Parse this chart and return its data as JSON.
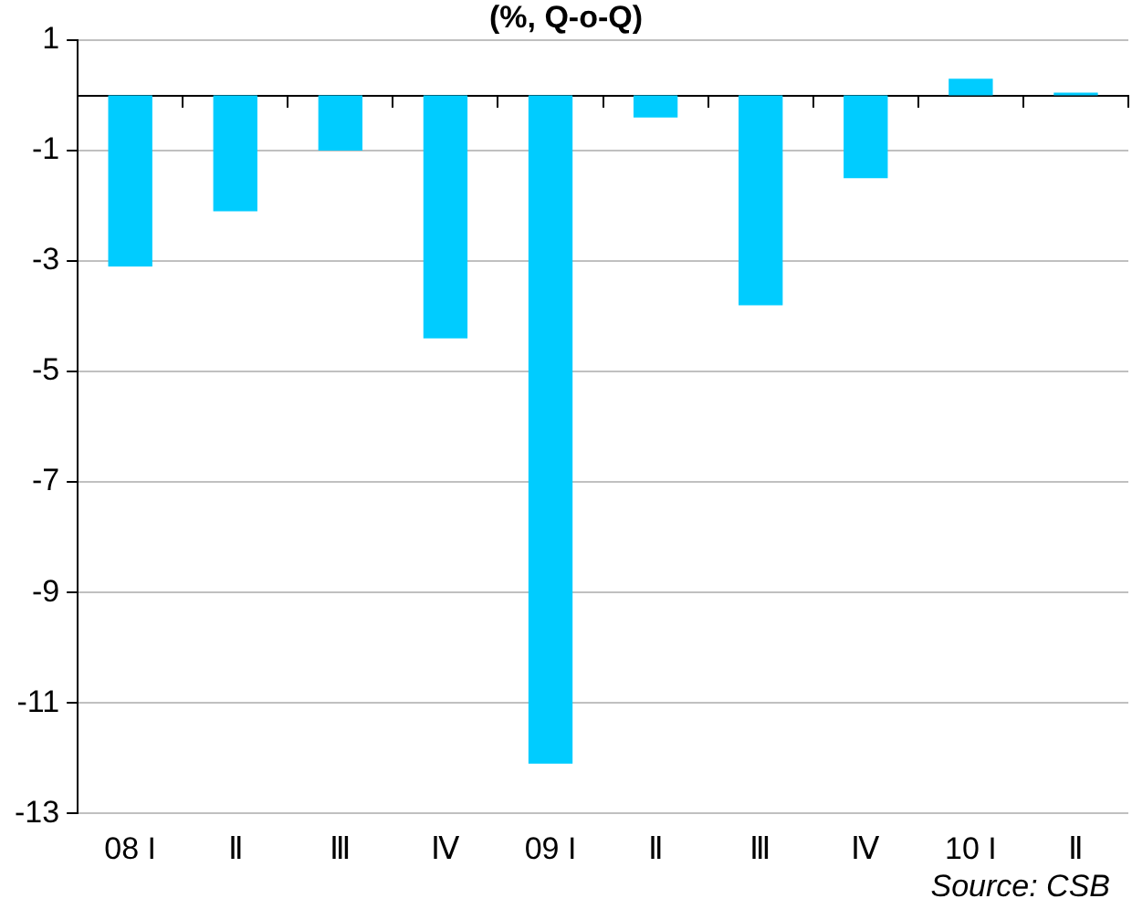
{
  "chart_data": {
    "type": "bar",
    "title": "(%, Q-o-Q)",
    "categories": [
      "08 I",
      "Ⅱ",
      "Ⅲ",
      "Ⅳ",
      "09 I",
      "Ⅱ",
      "Ⅲ",
      "Ⅳ",
      "10 I",
      "Ⅱ"
    ],
    "values": [
      -3.1,
      -2.1,
      -1.0,
      -4.4,
      -12.1,
      -0.4,
      -3.8,
      -1.5,
      0.3,
      0.05
    ],
    "color": "#00ccff",
    "ylim": [
      -13,
      1
    ],
    "yticks": [
      1,
      -1,
      -3,
      -5,
      -7,
      -9,
      -11,
      -13
    ],
    "grid": "y",
    "legend": false,
    "annotations": [
      "Source: CSB"
    ]
  }
}
